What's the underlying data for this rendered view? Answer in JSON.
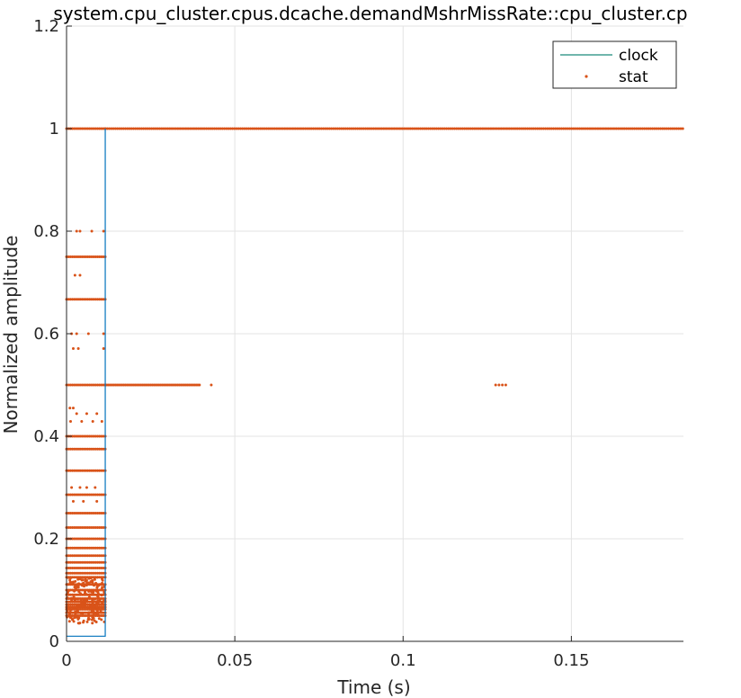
{
  "chart_data": {
    "type": "scatter",
    "title": "system.cpu_cluster.cpus.dcache.demandMshrMissRate::cpu_cluster.cp",
    "xlabel": "Time (s)",
    "ylabel": "Normalized amplitude",
    "xlim": [
      0,
      0.1833
    ],
    "ylim": [
      0,
      1.2
    ],
    "x_ticks": [
      0,
      0.05,
      0.1,
      0.15
    ],
    "x_tick_labels": [
      "0",
      "0.05",
      "0.1",
      "0.15"
    ],
    "y_ticks": [
      0,
      0.2,
      0.4,
      0.6,
      0.8,
      1.0,
      1.2
    ],
    "y_tick_labels": [
      "0",
      "0.2",
      "0.4",
      "0.6",
      "0.8",
      "1",
      "1.2"
    ],
    "grid": true,
    "legend_position": "top-right",
    "colors": {
      "clock": "#0072BD",
      "stat": "#D95319",
      "legend_clock_line": "#1a8a7a"
    },
    "series": [
      {
        "name": "clock",
        "kind": "line",
        "x": [
          0,
          0.0115,
          0.0115,
          0.0115,
          0.0115
        ],
        "y": [
          0.01,
          0.01,
          1.0,
          1.0,
          0.01
        ]
      },
      {
        "name": "stat",
        "kind": "scatter",
        "dense_bands": {
          "x_range": [
            0,
            0.0115
          ],
          "y_levels": [
            0.05,
            0.0556,
            0.0625,
            0.0667,
            0.0714,
            0.0769,
            0.0833,
            0.0909,
            0.1,
            0.111,
            0.125,
            0.133,
            0.143,
            0.154,
            0.167,
            0.182,
            0.2,
            0.222,
            0.25,
            0.286,
            0.333,
            0.375,
            0.4,
            0.5,
            0.667,
            0.75,
            1.0
          ]
        },
        "sparse_levels": [
          {
            "y": 0.8,
            "x": [
              0.003,
              0.004,
              0.0075,
              0.011
            ]
          },
          {
            "y": 0.714,
            "x": [
              0.0025,
              0.004
            ]
          },
          {
            "y": 0.6,
            "x": [
              0.0015,
              0.003,
              0.0065,
              0.011
            ]
          },
          {
            "y": 0.571,
            "x": [
              0.002,
              0.0035,
              0.011
            ]
          },
          {
            "y": 0.455,
            "x": [
              0.001,
              0.002
            ]
          },
          {
            "y": 0.444,
            "x": [
              0.003,
              0.006,
              0.009
            ]
          },
          {
            "y": 0.429,
            "x": [
              0.0012,
              0.0045,
              0.0078,
              0.0105
            ]
          },
          {
            "y": 0.3,
            "x": [
              0.0015,
              0.004,
              0.006,
              0.0085
            ]
          },
          {
            "y": 0.273,
            "x": [
              0.002,
              0.005,
              0.009
            ]
          }
        ],
        "line_segments": [
          {
            "y": 1.0,
            "x_range": [
              0.0115,
              0.1833
            ],
            "step": 0.0006
          },
          {
            "y": 0.5,
            "x_range": [
              0.0115,
              0.04
            ],
            "step": 0.0005
          }
        ],
        "extra_points": [
          {
            "x": 0.043,
            "y": 0.5
          },
          {
            "x": 0.1275,
            "y": 0.5
          },
          {
            "x": 0.1285,
            "y": 0.5
          },
          {
            "x": 0.1295,
            "y": 0.5
          },
          {
            "x": 0.1305,
            "y": 0.5
          }
        ]
      }
    ]
  }
}
